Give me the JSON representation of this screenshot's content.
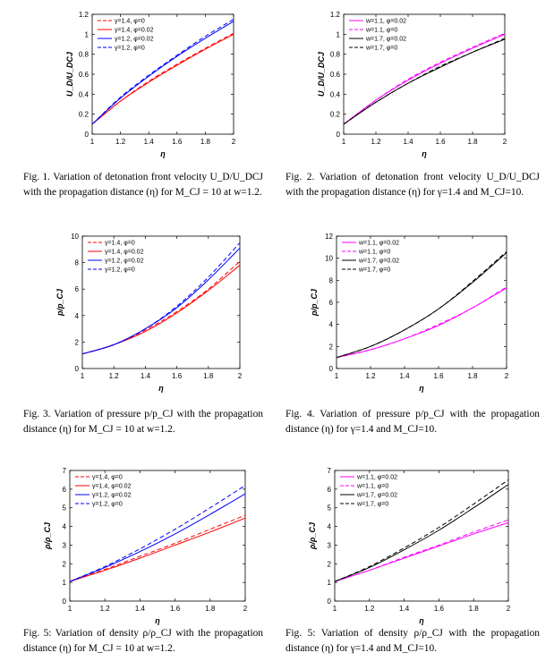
{
  "charts": [
    {
      "id": "fig1",
      "caption": "Fig. 1. Variation of detonation front velocity U_D/U_DCJ with the propagation distance (η) for M_CJ = 10 at w=1.2.",
      "chart_data": {
        "type": "line",
        "xlabel": "η",
        "ylabel": "U_D/U_DCJ",
        "xlim": [
          1,
          2
        ],
        "ylim": [
          0,
          1.2
        ],
        "xticks": [
          "1",
          "1.2",
          "1.4",
          "1.6",
          "1.8",
          "2"
        ],
        "yticks": [
          "0",
          "0.2",
          "0.4",
          "0.6",
          "0.8",
          "1",
          "1.2"
        ],
        "legend_position": "top-left",
        "series": [
          {
            "name": "γ=1.4,  φ=0",
            "color": "#ff0000",
            "dash": true,
            "x": [
              1,
              1.2,
              1.4,
              1.6,
              1.8,
              2
            ],
            "y": [
              0.1,
              0.33,
              0.53,
              0.7,
              0.86,
              1.01
            ]
          },
          {
            "name": "γ=1.4,  φ=0.02",
            "color": "#ff0000",
            "dash": false,
            "x": [
              1,
              1.2,
              1.4,
              1.6,
              1.8,
              2
            ],
            "y": [
              0.1,
              0.33,
              0.52,
              0.69,
              0.85,
              1.0
            ]
          },
          {
            "name": "γ=1.2,  φ=0.02",
            "color": "#0000ff",
            "dash": false,
            "x": [
              1,
              1.2,
              1.4,
              1.6,
              1.8,
              2
            ],
            "y": [
              0.1,
              0.36,
              0.58,
              0.78,
              0.96,
              1.13
            ]
          },
          {
            "name": "γ=1.2,  φ=0",
            "color": "#0000ff",
            "dash": true,
            "x": [
              1,
              1.2,
              1.4,
              1.6,
              1.8,
              2
            ],
            "y": [
              0.1,
              0.37,
              0.59,
              0.79,
              0.98,
              1.15
            ]
          }
        ]
      }
    },
    {
      "id": "fig2",
      "caption": "Fig. 2. Variation of detonation front velocity U_D/U_DCJ with the propagation distance (η) for γ=1.4 and M_CJ=10.",
      "chart_data": {
        "type": "line",
        "xlabel": "η",
        "ylabel": "U_D/U_DCJ",
        "xlim": [
          1,
          2
        ],
        "ylim": [
          0,
          1.2
        ],
        "xticks": [
          "1",
          "1.2",
          "1.4",
          "1.6",
          "1.8",
          "2"
        ],
        "yticks": [
          "0",
          "0.2",
          "0.4",
          "0.6",
          "0.8",
          "1",
          "1.2"
        ],
        "legend_position": "top-left",
        "series": [
          {
            "name": "w=1.1,  φ=0.02",
            "color": "#ff00ff",
            "dash": false,
            "x": [
              1,
              1.2,
              1.4,
              1.6,
              1.8,
              2
            ],
            "y": [
              0.1,
              0.34,
              0.54,
              0.71,
              0.86,
              1.0
            ]
          },
          {
            "name": "w=1.1,  φ=0",
            "color": "#ff00ff",
            "dash": true,
            "x": [
              1,
              1.2,
              1.4,
              1.6,
              1.8,
              2
            ],
            "y": [
              0.1,
              0.34,
              0.55,
              0.72,
              0.87,
              1.01
            ]
          },
          {
            "name": "w=1.7,  φ=0.02",
            "color": "#000000",
            "dash": false,
            "x": [
              1,
              1.2,
              1.4,
              1.6,
              1.8,
              2
            ],
            "y": [
              0.1,
              0.32,
              0.51,
              0.67,
              0.82,
              0.95
            ]
          },
          {
            "name": "w=1.7,  φ=0",
            "color": "#000000",
            "dash": true,
            "x": [
              1,
              1.2,
              1.4,
              1.6,
              1.8,
              2
            ],
            "y": [
              0.1,
              0.32,
              0.51,
              0.68,
              0.82,
              0.96
            ]
          }
        ]
      }
    },
    {
      "id": "fig3",
      "caption": "Fig. 3. Variation of pressure p/p_CJ with the propagation distance (η) for M_CJ = 10 at w=1.2.",
      "chart_data": {
        "type": "line",
        "xlabel": "η",
        "ylabel": "p/p_CJ",
        "xlim": [
          1,
          2
        ],
        "ylim": [
          0,
          10
        ],
        "xticks": [
          "1",
          "1.2",
          "1.4",
          "1.6",
          "1.8",
          "2"
        ],
        "yticks": [
          "0",
          "2",
          "4",
          "6",
          "8",
          "10"
        ],
        "legend_position": "top-left",
        "series": [
          {
            "name": "γ=1.4,  φ=0",
            "color": "#ff0000",
            "dash": true,
            "x": [
              1,
              1.2,
              1.4,
              1.6,
              1.8,
              2
            ],
            "y": [
              1.1,
              1.8,
              2.9,
              4.3,
              6.0,
              8.1
            ]
          },
          {
            "name": "γ=1.4,  φ=0.02",
            "color": "#ff0000",
            "dash": false,
            "x": [
              1,
              1.2,
              1.4,
              1.6,
              1.8,
              2
            ],
            "y": [
              1.1,
              1.8,
              2.8,
              4.2,
              5.9,
              7.8
            ]
          },
          {
            "name": "γ=1.2,  φ=0.02",
            "color": "#0000ff",
            "dash": false,
            "x": [
              1,
              1.2,
              1.4,
              1.6,
              1.8,
              2
            ],
            "y": [
              1.1,
              1.8,
              3.0,
              4.6,
              6.7,
              9.1
            ]
          },
          {
            "name": "γ=1.2,  φ=0",
            "color": "#0000ff",
            "dash": true,
            "x": [
              1,
              1.2,
              1.4,
              1.6,
              1.8,
              2
            ],
            "y": [
              1.1,
              1.8,
              3.0,
              4.7,
              6.9,
              9.5
            ]
          }
        ]
      }
    },
    {
      "id": "fig4",
      "caption": "Fig. 4. Variation of pressure p/p_CJ with the propagation distance (η) for γ=1.4 and M_CJ=10.",
      "chart_data": {
        "type": "line",
        "xlabel": "η",
        "ylabel": "p/p_CJ",
        "xlim": [
          1,
          2
        ],
        "ylim": [
          0,
          12
        ],
        "xticks": [
          "1",
          "1.2",
          "1.4",
          "1.6",
          "1.8",
          "2"
        ],
        "yticks": [
          "0",
          "2",
          "4",
          "6",
          "8",
          "10",
          "12"
        ],
        "legend_position": "top-left",
        "series": [
          {
            "name": "w=1.1,  φ=0.02",
            "color": "#ff00ff",
            "dash": false,
            "x": [
              1,
              1.2,
              1.4,
              1.6,
              1.8,
              2
            ],
            "y": [
              1.0,
              1.7,
              2.7,
              3.9,
              5.5,
              7.3
            ]
          },
          {
            "name": "w=1.1,  φ=0",
            "color": "#ff00ff",
            "dash": true,
            "x": [
              1,
              1.2,
              1.4,
              1.6,
              1.8,
              2
            ],
            "y": [
              1.0,
              1.7,
              2.7,
              4.0,
              5.5,
              7.4
            ]
          },
          {
            "name": "w=1.7,  φ=0.02",
            "color": "#000000",
            "dash": false,
            "x": [
              1,
              1.2,
              1.4,
              1.6,
              1.8,
              2
            ],
            "y": [
              1.0,
              2.0,
              3.5,
              5.4,
              7.8,
              10.5
            ]
          },
          {
            "name": "w=1.7,  φ=0",
            "color": "#000000",
            "dash": true,
            "x": [
              1,
              1.2,
              1.4,
              1.6,
              1.8,
              2
            ],
            "y": [
              1.0,
              2.0,
              3.5,
              5.4,
              7.9,
              10.6
            ]
          }
        ]
      }
    },
    {
      "id": "fig5a",
      "caption": "Fig. 5: Variation of density ρ/ρ_CJ with the propagation distance (η) for M_CJ = 10 at w=1.2.",
      "chart_data": {
        "type": "line",
        "xlabel": "η",
        "ylabel": "ρ/ρ_CJ",
        "xlim": [
          1,
          2
        ],
        "ylim": [
          0,
          7
        ],
        "xticks": [
          "1",
          "1.2",
          "1.4",
          "1.6",
          "1.8",
          "2"
        ],
        "yticks": [
          "0",
          "1",
          "2",
          "3",
          "4",
          "5",
          "6",
          "7"
        ],
        "legend_position": "top-left",
        "series": [
          {
            "name": "γ=1.4,  φ=0",
            "color": "#ff0000",
            "dash": true,
            "x": [
              1,
              1.2,
              1.4,
              1.6,
              1.8,
              2
            ],
            "y": [
              1.05,
              1.7,
              2.4,
              3.1,
              3.85,
              4.6
            ]
          },
          {
            "name": "γ=1.4,  φ=0.02",
            "color": "#ff0000",
            "dash": false,
            "x": [
              1,
              1.2,
              1.4,
              1.6,
              1.8,
              2
            ],
            "y": [
              1.05,
              1.65,
              2.3,
              3.0,
              3.7,
              4.45
            ]
          },
          {
            "name": "γ=1.2,  φ=0.02",
            "color": "#0000ff",
            "dash": false,
            "x": [
              1,
              1.2,
              1.4,
              1.6,
              1.8,
              2
            ],
            "y": [
              1.05,
              1.8,
              2.65,
              3.6,
              4.65,
              5.75
            ]
          },
          {
            "name": "γ=1.2,  φ=0",
            "color": "#0000ff",
            "dash": true,
            "x": [
              1,
              1.2,
              1.4,
              1.6,
              1.8,
              2
            ],
            "y": [
              1.05,
              1.85,
              2.8,
              3.85,
              5.0,
              6.2
            ]
          }
        ]
      }
    },
    {
      "id": "fig5b",
      "caption": "Fig. 5: Variation of density ρ/ρ_CJ with the propagation distance (η) for γ=1.4 and M_CJ=10.",
      "chart_data": {
        "type": "line",
        "xlabel": "η",
        "ylabel": "ρ/ρ_CJ",
        "xlim": [
          1,
          2
        ],
        "ylim": [
          0,
          7
        ],
        "xticks": [
          "1",
          "1.2",
          "1.4",
          "1.6",
          "1.8",
          "2"
        ],
        "yticks": [
          "0",
          "1",
          "2",
          "3",
          "4",
          "5",
          "6",
          "7"
        ],
        "legend_position": "top-left",
        "series": [
          {
            "name": "w=1.1,  φ=0.02",
            "color": "#ff00ff",
            "dash": false,
            "x": [
              1,
              1.2,
              1.4,
              1.6,
              1.8,
              2
            ],
            "y": [
              1.05,
              1.65,
              2.3,
              2.95,
              3.6,
              4.2
            ]
          },
          {
            "name": "w=1.1,  φ=0",
            "color": "#ff00ff",
            "dash": true,
            "x": [
              1,
              1.2,
              1.4,
              1.6,
              1.8,
              2
            ],
            "y": [
              1.05,
              1.65,
              2.35,
              3.0,
              3.7,
              4.35
            ]
          },
          {
            "name": "w=1.7,  φ=0.02",
            "color": "#000000",
            "dash": false,
            "x": [
              1,
              1.2,
              1.4,
              1.6,
              1.8,
              2
            ],
            "y": [
              1.05,
              1.8,
              2.75,
              3.8,
              5.0,
              6.25
            ]
          },
          {
            "name": "w=1.7,  φ=0",
            "color": "#000000",
            "dash": true,
            "x": [
              1,
              1.2,
              1.4,
              1.6,
              1.8,
              2
            ],
            "y": [
              1.05,
              1.85,
              2.85,
              3.95,
              5.2,
              6.5
            ]
          }
        ]
      }
    }
  ]
}
